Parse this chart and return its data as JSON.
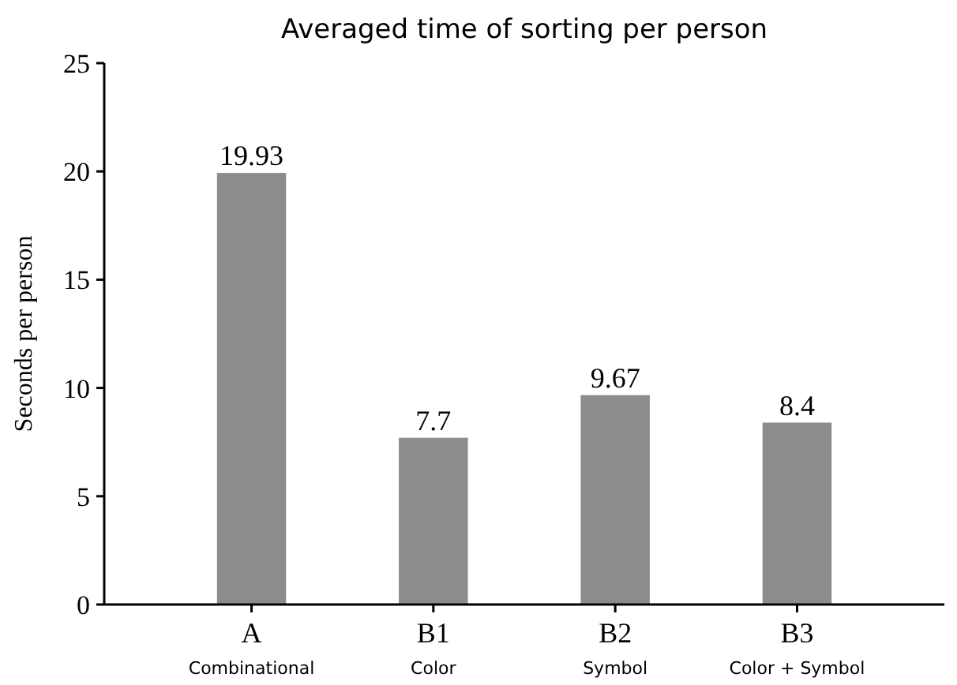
{
  "chart_data": {
    "type": "bar",
    "title": "Averaged time of sorting per person",
    "ylabel": "Seconds per person",
    "categories": [
      "A\nCombinational",
      "B1\nColor",
      "B2\nSymbol",
      "B3\nColor + Symbol"
    ],
    "values": [
      19.93,
      7.7,
      9.67,
      8.4
    ],
    "color": "#8c8c8c",
    "data_labels": true,
    "ylim": [
      0,
      25
    ],
    "yticks": [
      0,
      5,
      10,
      15,
      20,
      25
    ],
    "grid": false
  }
}
